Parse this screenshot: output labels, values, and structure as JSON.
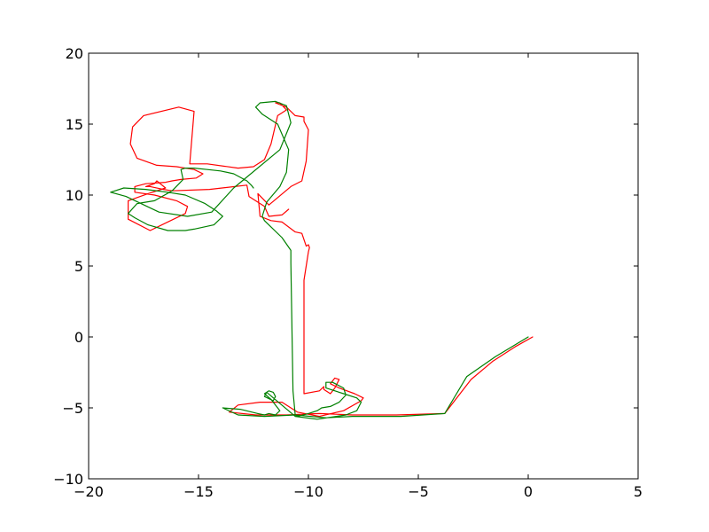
{
  "chart_data": {
    "type": "line",
    "title": "",
    "xlabel": "",
    "ylabel": "",
    "xlim": [
      -20,
      5
    ],
    "ylim": [
      -10,
      20
    ],
    "grid": false,
    "legend": "none",
    "x_ticks": [
      {
        "value": -20,
        "label": "−20"
      },
      {
        "value": -15,
        "label": "−15"
      },
      {
        "value": -10,
        "label": "−10"
      },
      {
        "value": -5,
        "label": "−5"
      },
      {
        "value": 0,
        "label": "0"
      },
      {
        "value": 5,
        "label": "5"
      }
    ],
    "y_ticks": [
      {
        "value": -10,
        "label": "−10"
      },
      {
        "value": -5,
        "label": "−5"
      },
      {
        "value": 0,
        "label": "0"
      },
      {
        "value": 5,
        "label": "5"
      },
      {
        "value": 10,
        "label": "10"
      },
      {
        "value": 15,
        "label": "15"
      },
      {
        "value": 20,
        "label": "20"
      }
    ],
    "series": [
      {
        "name": "red trajectory",
        "color": "#ff0000",
        "x": [
          0.2,
          -0.6,
          -1.6,
          -2.6,
          -3.8,
          -6.0,
          -8.0,
          -9.5,
          -11.0,
          -12.4,
          -13.6,
          -13.2,
          -12.2,
          -11.2,
          -10.5,
          -9.5,
          -8.4,
          -7.6,
          -7.5,
          -7.9,
          -8.6,
          -9.0,
          -8.8,
          -8.6,
          -8.8,
          -9.0,
          -9.3,
          -9.3,
          -9.5,
          -10.2,
          -10.2,
          -10.0,
          -9.95,
          -10.0,
          -10.1,
          -10.3,
          -10.6,
          -11.2,
          -11.7,
          -12.2,
          -12.3,
          -11.8,
          -10.8,
          -10.3,
          -10.1,
          -10.0,
          -10.2,
          -10.2,
          -10.6,
          -11.0,
          -11.5,
          -11.3,
          -11.0,
          -11.4,
          -11.7,
          -12.0,
          -12.5,
          -13.2,
          -14.6,
          -15.4,
          -15.2,
          -15.9,
          -17.5,
          -18.0,
          -18.1,
          -17.8,
          -16.9,
          -16.0,
          -15.2,
          -14.8,
          -15.1,
          -15.8,
          -16.2,
          -16.5,
          -17.4,
          -17.9,
          -17.9,
          -17.0,
          -16.0,
          -15.5,
          -15.6,
          -17.2,
          -18.2,
          -18.2,
          -17.3,
          -16.5,
          -16.9,
          -17.0,
          -17.4,
          -17.2,
          -16.6,
          -16.2,
          -14.5,
          -12.8,
          -12.7,
          -12.0,
          -11.8,
          -11.2,
          -10.9
        ],
        "y": [
          0.0,
          -0.7,
          -1.7,
          -3.0,
          -5.4,
          -5.5,
          -5.5,
          -5.4,
          -5.5,
          -5.5,
          -5.3,
          -4.8,
          -4.6,
          -4.6,
          -5.3,
          -5.6,
          -5.2,
          -4.5,
          -4.3,
          -4.0,
          -3.6,
          -3.3,
          -2.9,
          -3.0,
          -3.6,
          -4.0,
          -3.7,
          -3.5,
          -3.8,
          -4.0,
          4.0,
          6.0,
          6.3,
          6.5,
          6.4,
          7.3,
          7.4,
          8.1,
          8.2,
          8.5,
          10.1,
          9.3,
          10.6,
          11.0,
          12.4,
          14.6,
          15.2,
          15.5,
          15.6,
          16.2,
          16.5,
          16.5,
          16.0,
          15.6,
          13.6,
          12.5,
          12.0,
          11.9,
          12.2,
          12.2,
          15.9,
          16.2,
          15.6,
          14.8,
          13.6,
          12.6,
          12.1,
          12.0,
          11.8,
          11.5,
          11.2,
          11.1,
          11.0,
          10.9,
          10.8,
          10.6,
          10.2,
          10.0,
          9.6,
          9.2,
          8.7,
          7.5,
          8.3,
          9.6,
          10.1,
          10.5,
          11.0,
          10.8,
          10.6,
          10.6,
          10.4,
          10.3,
          10.4,
          10.7,
          9.9,
          9.2,
          8.5,
          8.6,
          9.0
        ]
      },
      {
        "name": "green trajectory",
        "color": "#008000",
        "x": [
          0.0,
          -1.5,
          -2.8,
          -3.8,
          -5.8,
          -8.0,
          -9.2,
          -10.6,
          -12.0,
          -13.2,
          -13.9,
          -13.1,
          -12.3,
          -12.0,
          -11.8,
          -11.5,
          -11.3,
          -11.7,
          -12.0,
          -11.8,
          -11.6,
          -11.5,
          -11.6,
          -12.0,
          -11.9,
          -10.6,
          -9.6,
          -8.3,
          -7.8,
          -7.6,
          -7.8,
          -8.4,
          -9.2,
          -9.2,
          -8.9,
          -8.4,
          -8.3,
          -8.6,
          -9.0,
          -9.4,
          -9.6,
          -10.0,
          -10.5,
          -10.6,
          -10.7,
          -10.8,
          -10.8,
          -11.2,
          -12.0,
          -12.1,
          -11.9,
          -11.3,
          -11.0,
          -10.9,
          -11.4,
          -12.1,
          -12.4,
          -12.2,
          -11.5,
          -11.0,
          -10.8,
          -11.3,
          -13.4,
          -14.4,
          -15.5,
          -16.8,
          -18.3,
          -19.0,
          -18.4,
          -17.4,
          -16.4,
          -15.6,
          -14.7,
          -14.2,
          -13.9,
          -14.3,
          -15.2,
          -15.6,
          -16.4,
          -17.3,
          -17.9,
          -18.2,
          -17.8,
          -17.0,
          -16.2,
          -15.7,
          -15.8,
          -15.6,
          -15.2,
          -14.6,
          -14.0,
          -13.4,
          -12.8,
          -12.6,
          -12.5
        ],
        "y": [
          0.0,
          -1.4,
          -2.8,
          -5.4,
          -5.6,
          -5.6,
          -5.7,
          -5.5,
          -5.6,
          -5.5,
          -5.0,
          -5.1,
          -5.4,
          -5.5,
          -5.4,
          -5.5,
          -5.2,
          -4.4,
          -4.0,
          -3.8,
          -3.9,
          -4.2,
          -4.5,
          -4.2,
          -3.9,
          -5.6,
          -5.8,
          -5.5,
          -5.2,
          -4.6,
          -4.3,
          -4.0,
          -3.6,
          -3.2,
          -3.2,
          -3.6,
          -4.1,
          -4.6,
          -4.9,
          -5.0,
          -5.2,
          -5.4,
          -5.6,
          -5.5,
          -3.8,
          5.2,
          6.1,
          7.0,
          8.2,
          8.5,
          9.5,
          10.6,
          11.6,
          13.2,
          15.0,
          15.7,
          16.2,
          16.5,
          16.6,
          16.3,
          15.1,
          13.2,
          10.5,
          8.8,
          8.5,
          8.8,
          9.9,
          10.2,
          10.5,
          10.4,
          10.2,
          10.0,
          9.4,
          8.9,
          8.5,
          7.9,
          7.6,
          7.5,
          7.5,
          7.9,
          8.4,
          8.7,
          9.4,
          9.6,
          10.3,
          11.1,
          11.8,
          11.9,
          11.9,
          11.8,
          11.7,
          11.5,
          11.0,
          10.7,
          10.5
        ]
      }
    ]
  }
}
